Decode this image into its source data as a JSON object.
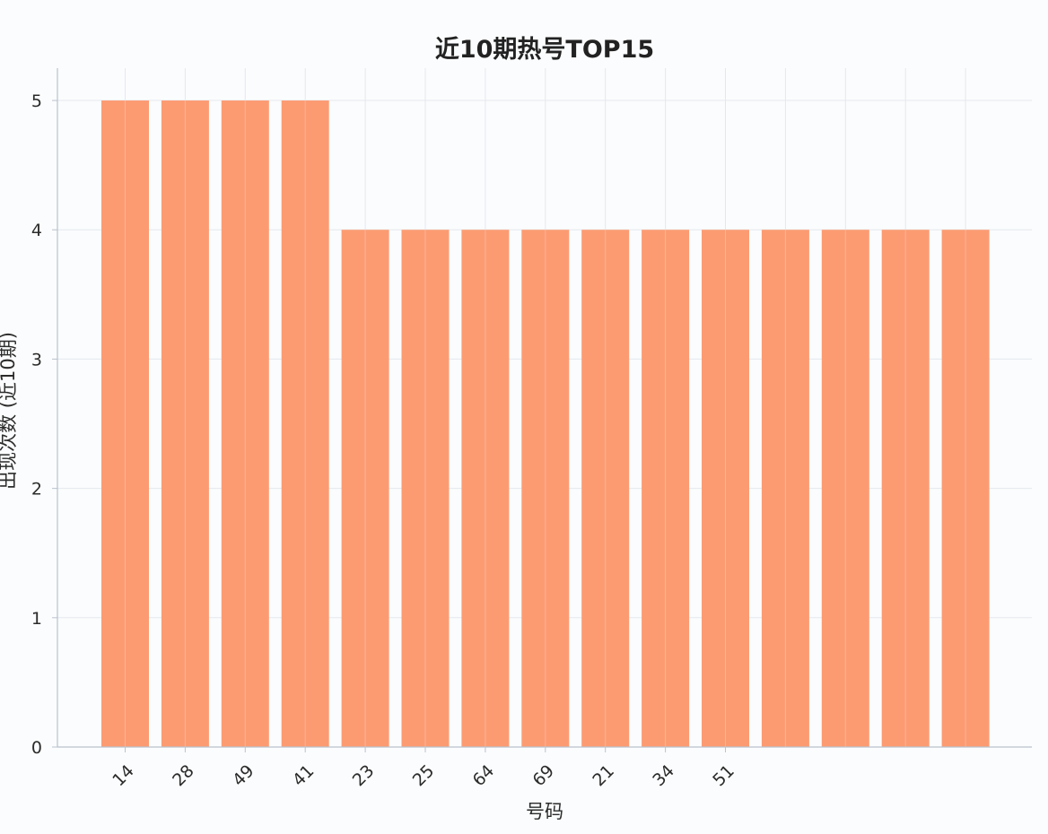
{
  "chart_data": {
    "type": "bar",
    "title": "近10期热号TOP15",
    "xlabel": "号码",
    "ylabel": "出现次数 (近10期)",
    "categories": [
      "14",
      "28",
      "49",
      "41",
      "23",
      "25",
      "64",
      "69",
      "21",
      "34",
      "51",
      "",
      "",
      "",
      ""
    ],
    "values": [
      5,
      5,
      5,
      5,
      4,
      4,
      4,
      4,
      4,
      4,
      4,
      4,
      4,
      4,
      4
    ],
    "ylim": [
      0,
      5.25
    ],
    "yticks": [
      0,
      1,
      2,
      3,
      4,
      5
    ],
    "grid": true,
    "colors": {
      "bar": "#fc9b72",
      "grid": "#e4e8ee",
      "axis": "#b9c2cd",
      "text": "#2b2b2b"
    }
  }
}
